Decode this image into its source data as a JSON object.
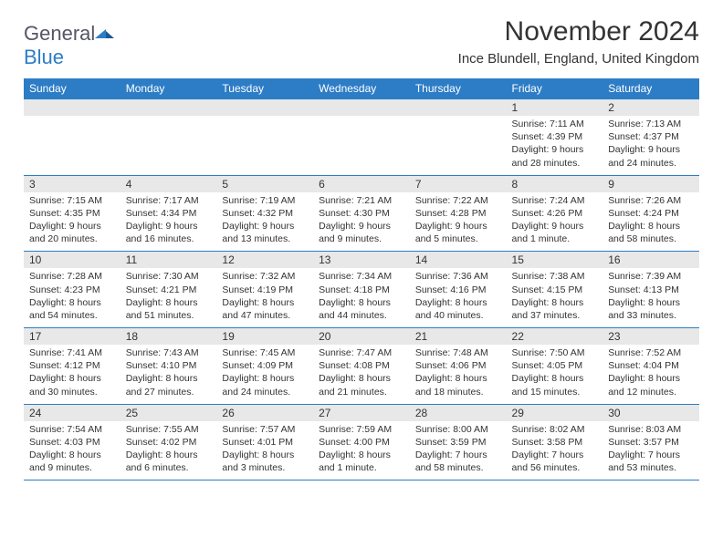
{
  "brand": {
    "name_a": "General",
    "name_b": "Blue"
  },
  "header": {
    "title": "November 2024",
    "location": "Ince Blundell, England, United Kingdom"
  },
  "colors": {
    "accent": "#2d7dc6",
    "header_bg": "#2d7dc6",
    "daynum_bg": "#e8e8e8",
    "text": "#333333",
    "background": "#ffffff"
  },
  "day_labels": [
    "Sunday",
    "Monday",
    "Tuesday",
    "Wednesday",
    "Thursday",
    "Friday",
    "Saturday"
  ],
  "weeks": [
    [
      {
        "n": "",
        "sunrise": "",
        "sunset": "",
        "daylight": ""
      },
      {
        "n": "",
        "sunrise": "",
        "sunset": "",
        "daylight": ""
      },
      {
        "n": "",
        "sunrise": "",
        "sunset": "",
        "daylight": ""
      },
      {
        "n": "",
        "sunrise": "",
        "sunset": "",
        "daylight": ""
      },
      {
        "n": "",
        "sunrise": "",
        "sunset": "",
        "daylight": ""
      },
      {
        "n": "1",
        "sunrise": "Sunrise: 7:11 AM",
        "sunset": "Sunset: 4:39 PM",
        "daylight": "Daylight: 9 hours and 28 minutes."
      },
      {
        "n": "2",
        "sunrise": "Sunrise: 7:13 AM",
        "sunset": "Sunset: 4:37 PM",
        "daylight": "Daylight: 9 hours and 24 minutes."
      }
    ],
    [
      {
        "n": "3",
        "sunrise": "Sunrise: 7:15 AM",
        "sunset": "Sunset: 4:35 PM",
        "daylight": "Daylight: 9 hours and 20 minutes."
      },
      {
        "n": "4",
        "sunrise": "Sunrise: 7:17 AM",
        "sunset": "Sunset: 4:34 PM",
        "daylight": "Daylight: 9 hours and 16 minutes."
      },
      {
        "n": "5",
        "sunrise": "Sunrise: 7:19 AM",
        "sunset": "Sunset: 4:32 PM",
        "daylight": "Daylight: 9 hours and 13 minutes."
      },
      {
        "n": "6",
        "sunrise": "Sunrise: 7:21 AM",
        "sunset": "Sunset: 4:30 PM",
        "daylight": "Daylight: 9 hours and 9 minutes."
      },
      {
        "n": "7",
        "sunrise": "Sunrise: 7:22 AM",
        "sunset": "Sunset: 4:28 PM",
        "daylight": "Daylight: 9 hours and 5 minutes."
      },
      {
        "n": "8",
        "sunrise": "Sunrise: 7:24 AM",
        "sunset": "Sunset: 4:26 PM",
        "daylight": "Daylight: 9 hours and 1 minute."
      },
      {
        "n": "9",
        "sunrise": "Sunrise: 7:26 AM",
        "sunset": "Sunset: 4:24 PM",
        "daylight": "Daylight: 8 hours and 58 minutes."
      }
    ],
    [
      {
        "n": "10",
        "sunrise": "Sunrise: 7:28 AM",
        "sunset": "Sunset: 4:23 PM",
        "daylight": "Daylight: 8 hours and 54 minutes."
      },
      {
        "n": "11",
        "sunrise": "Sunrise: 7:30 AM",
        "sunset": "Sunset: 4:21 PM",
        "daylight": "Daylight: 8 hours and 51 minutes."
      },
      {
        "n": "12",
        "sunrise": "Sunrise: 7:32 AM",
        "sunset": "Sunset: 4:19 PM",
        "daylight": "Daylight: 8 hours and 47 minutes."
      },
      {
        "n": "13",
        "sunrise": "Sunrise: 7:34 AM",
        "sunset": "Sunset: 4:18 PM",
        "daylight": "Daylight: 8 hours and 44 minutes."
      },
      {
        "n": "14",
        "sunrise": "Sunrise: 7:36 AM",
        "sunset": "Sunset: 4:16 PM",
        "daylight": "Daylight: 8 hours and 40 minutes."
      },
      {
        "n": "15",
        "sunrise": "Sunrise: 7:38 AM",
        "sunset": "Sunset: 4:15 PM",
        "daylight": "Daylight: 8 hours and 37 minutes."
      },
      {
        "n": "16",
        "sunrise": "Sunrise: 7:39 AM",
        "sunset": "Sunset: 4:13 PM",
        "daylight": "Daylight: 8 hours and 33 minutes."
      }
    ],
    [
      {
        "n": "17",
        "sunrise": "Sunrise: 7:41 AM",
        "sunset": "Sunset: 4:12 PM",
        "daylight": "Daylight: 8 hours and 30 minutes."
      },
      {
        "n": "18",
        "sunrise": "Sunrise: 7:43 AM",
        "sunset": "Sunset: 4:10 PM",
        "daylight": "Daylight: 8 hours and 27 minutes."
      },
      {
        "n": "19",
        "sunrise": "Sunrise: 7:45 AM",
        "sunset": "Sunset: 4:09 PM",
        "daylight": "Daylight: 8 hours and 24 minutes."
      },
      {
        "n": "20",
        "sunrise": "Sunrise: 7:47 AM",
        "sunset": "Sunset: 4:08 PM",
        "daylight": "Daylight: 8 hours and 21 minutes."
      },
      {
        "n": "21",
        "sunrise": "Sunrise: 7:48 AM",
        "sunset": "Sunset: 4:06 PM",
        "daylight": "Daylight: 8 hours and 18 minutes."
      },
      {
        "n": "22",
        "sunrise": "Sunrise: 7:50 AM",
        "sunset": "Sunset: 4:05 PM",
        "daylight": "Daylight: 8 hours and 15 minutes."
      },
      {
        "n": "23",
        "sunrise": "Sunrise: 7:52 AM",
        "sunset": "Sunset: 4:04 PM",
        "daylight": "Daylight: 8 hours and 12 minutes."
      }
    ],
    [
      {
        "n": "24",
        "sunrise": "Sunrise: 7:54 AM",
        "sunset": "Sunset: 4:03 PM",
        "daylight": "Daylight: 8 hours and 9 minutes."
      },
      {
        "n": "25",
        "sunrise": "Sunrise: 7:55 AM",
        "sunset": "Sunset: 4:02 PM",
        "daylight": "Daylight: 8 hours and 6 minutes."
      },
      {
        "n": "26",
        "sunrise": "Sunrise: 7:57 AM",
        "sunset": "Sunset: 4:01 PM",
        "daylight": "Daylight: 8 hours and 3 minutes."
      },
      {
        "n": "27",
        "sunrise": "Sunrise: 7:59 AM",
        "sunset": "Sunset: 4:00 PM",
        "daylight": "Daylight: 8 hours and 1 minute."
      },
      {
        "n": "28",
        "sunrise": "Sunrise: 8:00 AM",
        "sunset": "Sunset: 3:59 PM",
        "daylight": "Daylight: 7 hours and 58 minutes."
      },
      {
        "n": "29",
        "sunrise": "Sunrise: 8:02 AM",
        "sunset": "Sunset: 3:58 PM",
        "daylight": "Daylight: 7 hours and 56 minutes."
      },
      {
        "n": "30",
        "sunrise": "Sunrise: 8:03 AM",
        "sunset": "Sunset: 3:57 PM",
        "daylight": "Daylight: 7 hours and 53 minutes."
      }
    ]
  ]
}
